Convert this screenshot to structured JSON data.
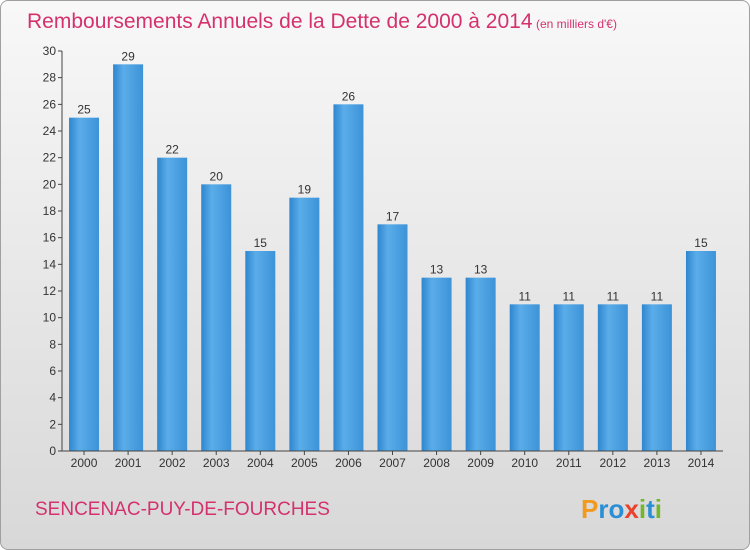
{
  "chart_data": {
    "type": "bar",
    "title": "Remboursements Annuels de la Dette de 2000 à 2014",
    "subtitle": "(en milliers d'€)",
    "categories": [
      "2000",
      "2001",
      "2002",
      "2003",
      "2004",
      "2005",
      "2006",
      "2007",
      "2008",
      "2009",
      "2010",
      "2011",
      "2012",
      "2013",
      "2014"
    ],
    "values": [
      25,
      29,
      22,
      20,
      15,
      19,
      26,
      17,
      13,
      13,
      11,
      11,
      11,
      11,
      15
    ],
    "xlabel": "",
    "ylabel": "",
    "ylim": [
      0,
      30
    ],
    "yticks": [
      0,
      2,
      4,
      6,
      8,
      10,
      12,
      14,
      16,
      18,
      20,
      22,
      24,
      26,
      28,
      30
    ],
    "grid": false,
    "colors": {
      "bar": "#4a9fe0",
      "bar_light": "#6db9f2",
      "bar_dark": "#2f7fc5",
      "title": "#d4316d"
    }
  },
  "footer": {
    "commune": "SENCENAC-PUY-DE-FOURCHES",
    "logo": [
      "P",
      "r",
      "o",
      "x",
      "i",
      "t",
      "i"
    ],
    "logo_colors": [
      "#f29a1e",
      "#2a8fd6",
      "#2a8fd6",
      "#e8412c",
      "#73b72b",
      "#2a8fd6",
      "#73b72b"
    ]
  }
}
